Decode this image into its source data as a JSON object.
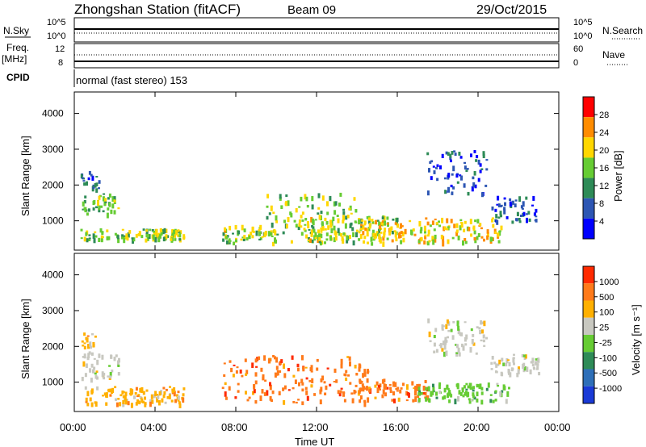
{
  "header": {
    "station": "Zhongshan Station (fitACF)",
    "beam": "Beam 09",
    "date": "29/Oct/2015"
  },
  "strip1": {
    "left_label": "N.Sky",
    "right_label": "N.Search",
    "left_ticks": [
      "10^5",
      "10^0"
    ],
    "right_ticks": [
      "10^5",
      "10^0"
    ]
  },
  "strip2": {
    "left_label_top": "Freq.",
    "left_label_unit": "[MHz]",
    "left_ticks": [
      "12",
      "8"
    ],
    "right_label": "Nave",
    "right_ticks": [
      "60",
      "0"
    ]
  },
  "cpid": {
    "label": "CPID",
    "text": "normal (fast stereo) 153"
  },
  "x_axis": {
    "label": "Time UT",
    "ticks": [
      "00:00",
      "04:00",
      "08:00",
      "12:00",
      "16:00",
      "20:00",
      "00:00"
    ]
  },
  "power_panel": {
    "ylabel": "Slant Range [km]",
    "yticks": [
      "4000",
      "3000",
      "2000",
      "1000"
    ],
    "colorbar_label": "Power [dB]",
    "colorbar_ticks": [
      "28",
      "24",
      "20",
      "16",
      "12",
      "8",
      "4"
    ],
    "colors": [
      "#0000ff",
      "#2d56b3",
      "#2e8b57",
      "#66cc33",
      "#ffd700",
      "#ff8c00",
      "#ff0000"
    ]
  },
  "velocity_panel": {
    "ylabel": "Slant Range [km]",
    "yticks": [
      "4000",
      "3000",
      "2000",
      "1000"
    ],
    "colorbar_label": "Velocity [m s⁻¹]",
    "colorbar_ticks": [
      "1000",
      "500",
      "100",
      "25",
      "-25",
      "-100",
      "-500",
      "-1000"
    ],
    "colors": [
      "#1a3ad6",
      "#2e6fb8",
      "#2e8b57",
      "#66cc33",
      "#c8c8c0",
      "#ffb000",
      "#ff7a1a",
      "#ff2a00"
    ]
  },
  "chart_data": {
    "type": "heatmap",
    "x_range_hours": [
      0,
      24
    ],
    "y_range_km": [
      180,
      4600
    ],
    "power_echo_regions": [
      {
        "t": [
          0.3,
          5.4
        ],
        "r": [
          500,
          800
        ],
        "level": 3.2
      },
      {
        "t": [
          0.3,
          2.2
        ],
        "r": [
          1200,
          1800
        ],
        "level": 2.6
      },
      {
        "t": [
          0.3,
          1.2
        ],
        "r": [
          1900,
          2400
        ],
        "level": 1.3
      },
      {
        "t": [
          7.3,
          10.0
        ],
        "r": [
          400,
          900
        ],
        "level": 3.4
      },
      {
        "t": [
          9.5,
          14.0
        ],
        "r": [
          400,
          1800
        ],
        "level": 3.0
      },
      {
        "t": [
          11.0,
          16.0
        ],
        "r": [
          450,
          1200
        ],
        "level": 3.4
      },
      {
        "t": [
          14.0,
          21.2
        ],
        "r": [
          400,
          1100
        ],
        "level": 4.0
      },
      {
        "t": [
          17.4,
          20.4
        ],
        "r": [
          1800,
          3000
        ],
        "level": 0.9
      },
      {
        "t": [
          20.6,
          22.9
        ],
        "r": [
          1000,
          1700
        ],
        "level": 0.8
      }
    ],
    "velocity_echo_regions": [
      {
        "t": [
          0.3,
          2.2
        ],
        "r": [
          1100,
          1900
        ],
        "band": 4
      },
      {
        "t": [
          0.3,
          1.0
        ],
        "r": [
          2000,
          2400
        ],
        "band": 5
      },
      {
        "t": [
          0.5,
          5.4
        ],
        "r": [
          400,
          900
        ],
        "band": 5
      },
      {
        "t": [
          7.3,
          14.5
        ],
        "r": [
          450,
          1800
        ],
        "band": 6
      },
      {
        "t": [
          14.0,
          17.5
        ],
        "r": [
          500,
          1100
        ],
        "band": 6
      },
      {
        "t": [
          17.0,
          21.5
        ],
        "r": [
          500,
          1000
        ],
        "band": 3
      },
      {
        "t": [
          17.4,
          20.4
        ],
        "r": [
          1800,
          2800
        ],
        "band": 4
      },
      {
        "t": [
          20.5,
          23.0
        ],
        "r": [
          1200,
          1800
        ],
        "band": 4
      }
    ]
  }
}
